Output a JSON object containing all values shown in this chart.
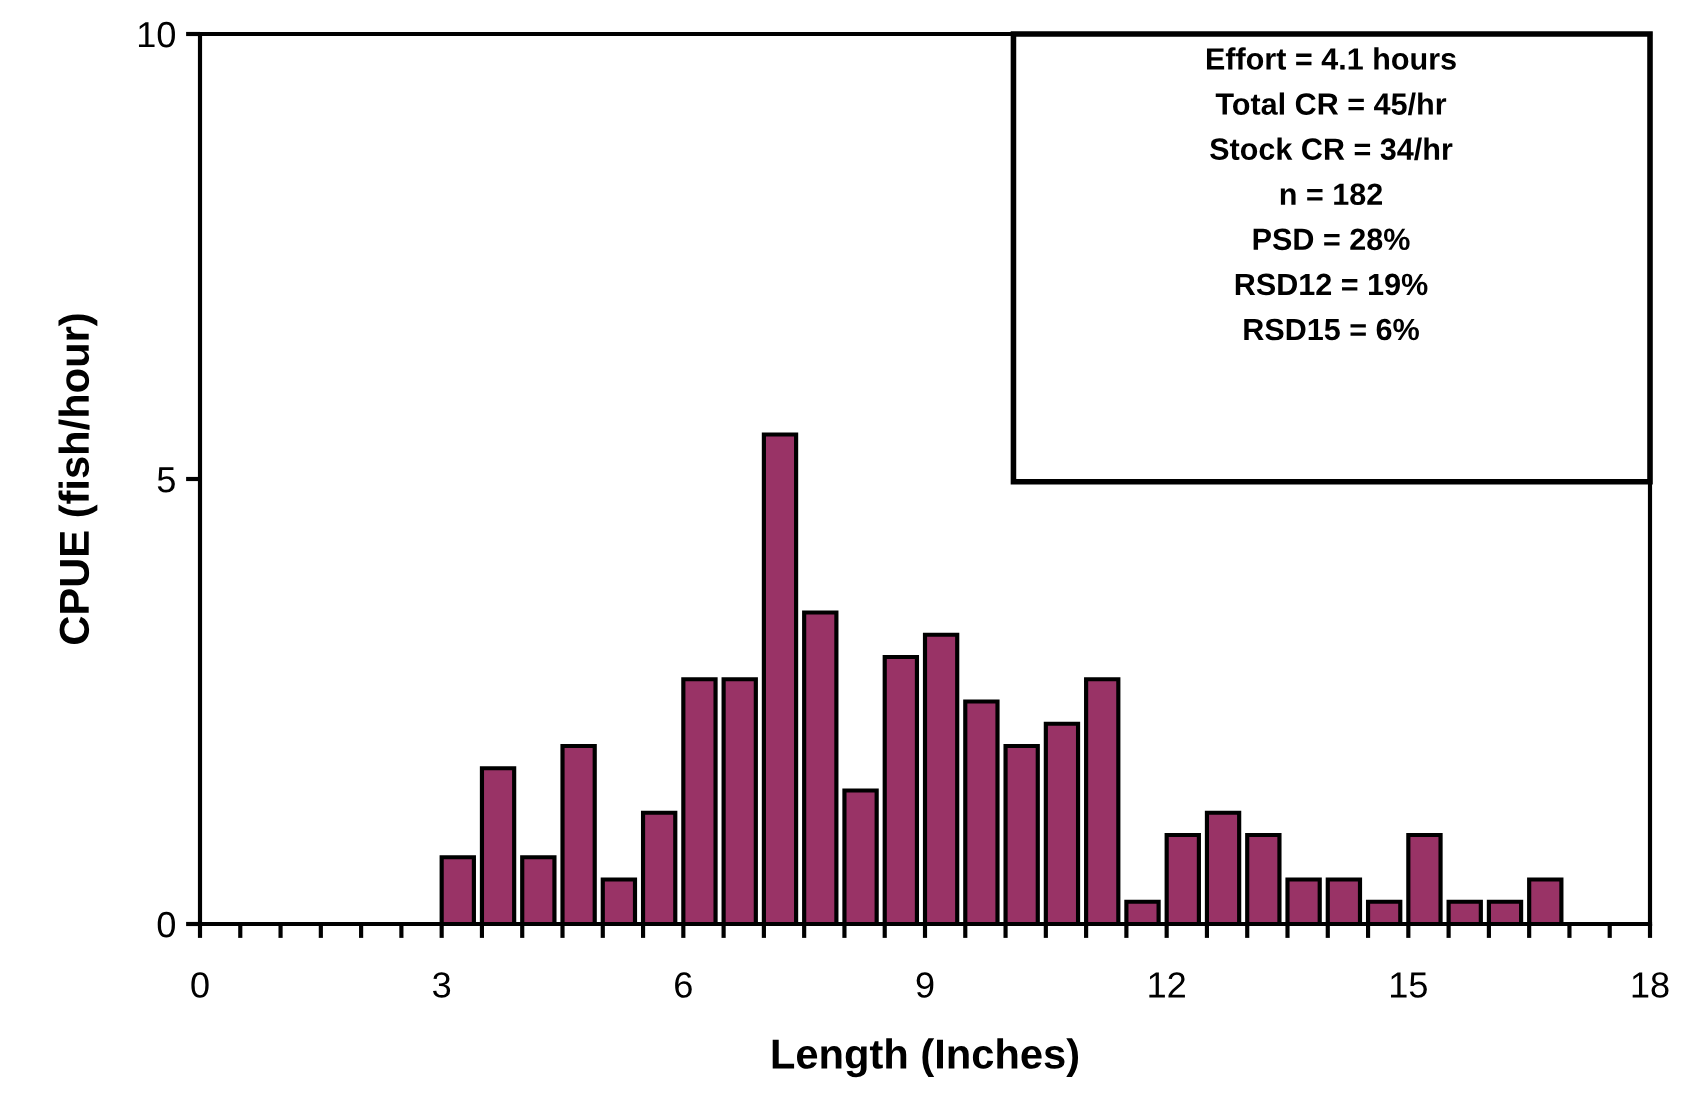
{
  "chart_data": {
    "type": "histogram",
    "xlabel": "Length (Inches)",
    "ylabel": "CPUE (fish/hour)",
    "bins": [
      3,
      3.5,
      4,
      4.5,
      5,
      5.5,
      6,
      6.5,
      7,
      7.5,
      8,
      8.5,
      9,
      9.5,
      10,
      10.5,
      11,
      11.5,
      12,
      12.5,
      13,
      13.5,
      14,
      14.5,
      15,
      15.5,
      16,
      16.5,
      17
    ],
    "values": [
      0.75,
      1.75,
      0.75,
      2.0,
      0.5,
      1.25,
      2.75,
      2.75,
      5.5,
      3.5,
      1.5,
      3.0,
      3.25,
      2.5,
      2.0,
      2.25,
      2.75,
      0.25,
      1.0,
      1.25,
      1.0,
      0.5,
      0.5,
      0.25,
      1.0,
      0.25,
      0.25,
      0.5
    ],
    "color": "#993366",
    "xlim": [
      0,
      18
    ],
    "ylim": [
      0,
      10
    ],
    "xticks": [
      0,
      {
        "value": 0.5,
        "label": null
      },
      {
        "value": 1,
        "label": null
      },
      {
        "value": 1.5,
        "label": null
      },
      {
        "value": 2,
        "label": null
      },
      {
        "value": 2.5,
        "label": null
      },
      3,
      {
        "value": 3.5,
        "label": null
      },
      {
        "value": 4,
        "label": null
      },
      {
        "value": 4.5,
        "label": null
      },
      {
        "value": 5,
        "label": null
      },
      {
        "value": 5.5,
        "label": null
      },
      6,
      {
        "value": 6.5,
        "label": null
      },
      {
        "value": 7,
        "label": null
      },
      {
        "value": 7.5,
        "label": null
      },
      {
        "value": 8,
        "label": null
      },
      {
        "value": 8.5,
        "label": null
      },
      9,
      {
        "value": 9.5,
        "label": null
      },
      {
        "value": 10,
        "label": null
      },
      {
        "value": 10.5,
        "label": null
      },
      {
        "value": 11,
        "label": null
      },
      {
        "value": 11.5,
        "label": null
      },
      12,
      {
        "value": 12.5,
        "label": null
      },
      {
        "value": 13,
        "label": null
      },
      {
        "value": 13.5,
        "label": null
      },
      {
        "value": 14,
        "label": null
      },
      {
        "value": 14.5,
        "label": null
      },
      15,
      {
        "value": 15.5,
        "label": null
      },
      {
        "value": 16,
        "label": null
      },
      {
        "value": 16.5,
        "label": null
      },
      {
        "value": 17,
        "label": null
      },
      {
        "value": 17.5,
        "label": null
      },
      18
    ],
    "yticks": [
      0,
      5,
      10
    ],
    "grid": false,
    "annotations": [
      "Effort = 4.1 hours",
      "Total CR = 45/hr",
      "Stock CR = 34/hr",
      "n = 182",
      "PSD = 28%",
      "RSD12 = 19%",
      "RSD15 = 6%"
    ]
  }
}
